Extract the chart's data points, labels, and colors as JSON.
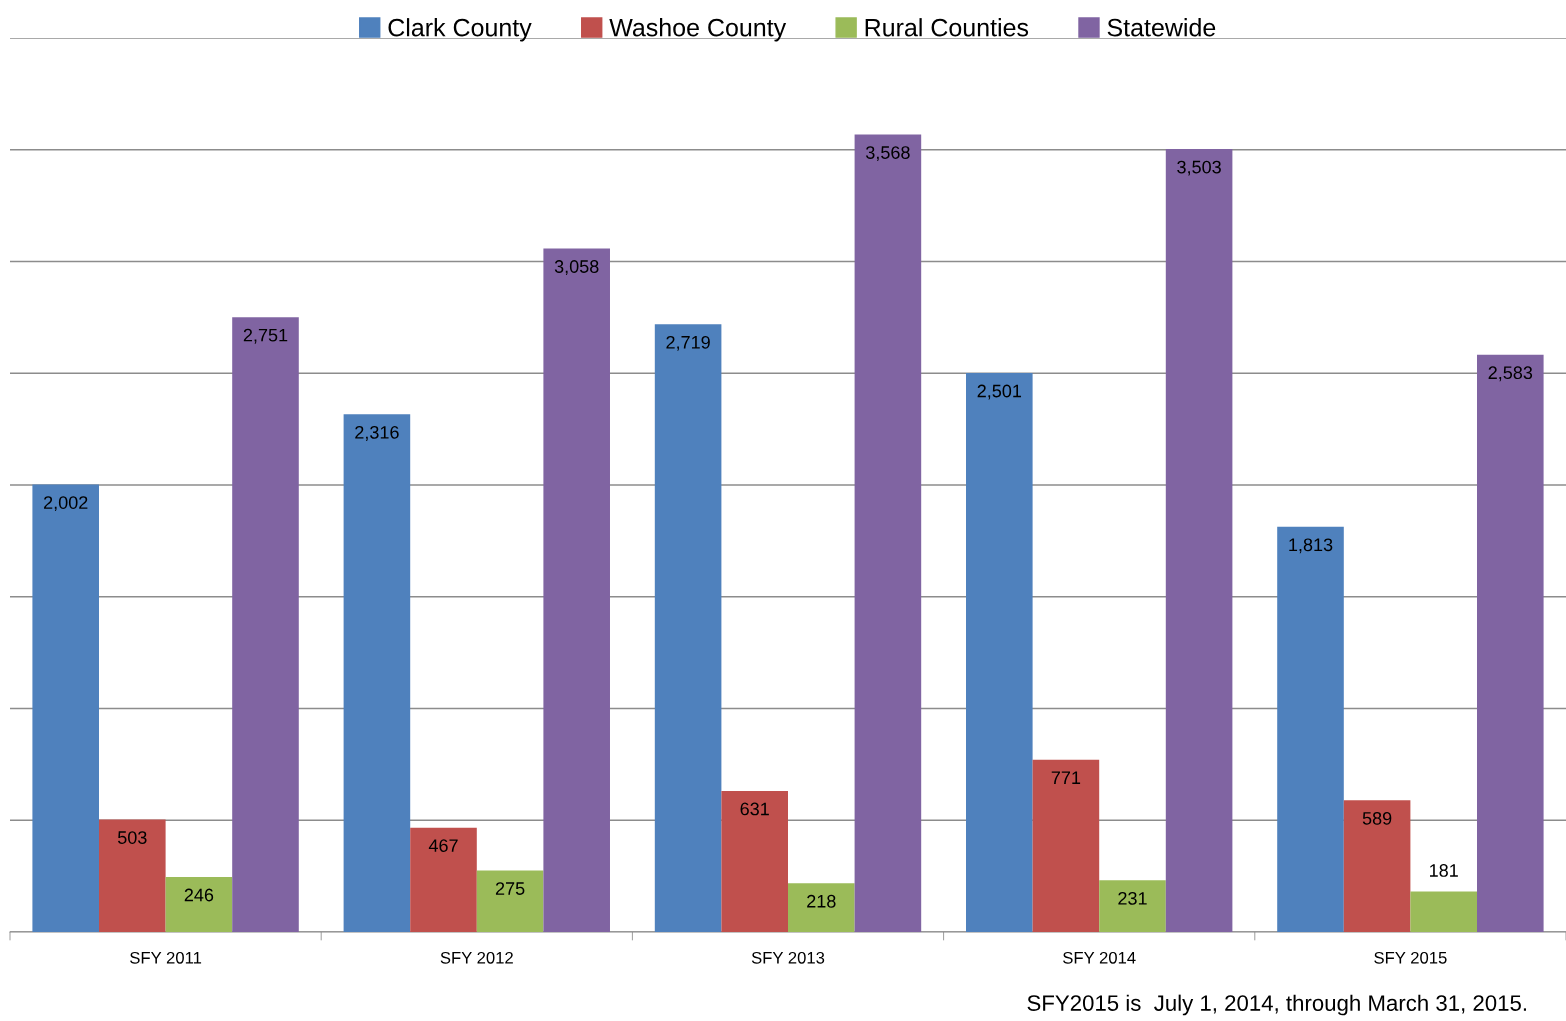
{
  "chart_data": {
    "type": "bar",
    "categories": [
      "SFY 2011",
      "SFY 2012",
      "SFY 2013",
      "SFY 2014",
      "SFY 2015"
    ],
    "series": [
      {
        "name": "Clark County",
        "color": "#4f81bd",
        "values": [
          2002,
          2316,
          2719,
          2501,
          1813
        ],
        "value_labels": [
          "2,002",
          "2,316",
          "2,719",
          "2,501",
          "1,813"
        ]
      },
      {
        "name": "Washoe County",
        "color": "#c0504d",
        "values": [
          503,
          467,
          631,
          771,
          589
        ],
        "value_labels": [
          "503",
          "467",
          "631",
          "771",
          "589"
        ]
      },
      {
        "name": "Rural Counties",
        "color": "#9bbb59",
        "values": [
          246,
          275,
          218,
          231,
          181
        ],
        "value_labels": [
          "246",
          "275",
          "218",
          "231",
          "181"
        ]
      },
      {
        "name": "Statewide",
        "color": "#8064a2",
        "values": [
          2751,
          3058,
          3568,
          3503,
          2583
        ],
        "value_labels": [
          "2,751",
          "3,058",
          "3,568",
          "3,503",
          "2,583"
        ]
      }
    ],
    "ylim": [
      0,
      4000
    ],
    "yticks": [
      {
        "value": 0,
        "label": null
      },
      {
        "value": 500,
        "label": null
      },
      {
        "value": 1000,
        "label": null
      },
      {
        "value": 1500,
        "label": null
      },
      {
        "value": 2000,
        "label": null
      },
      {
        "value": 2500,
        "label": null
      },
      {
        "value": 3000,
        "label": null
      },
      {
        "value": 3500,
        "label": null
      },
      {
        "value": 4000,
        "label": null
      }
    ],
    "grid": "y",
    "legend": "top",
    "tick_labels": "x",
    "annotations": [
      "SFY2015 is  July 1, 2014, through March 31, 2015."
    ]
  }
}
